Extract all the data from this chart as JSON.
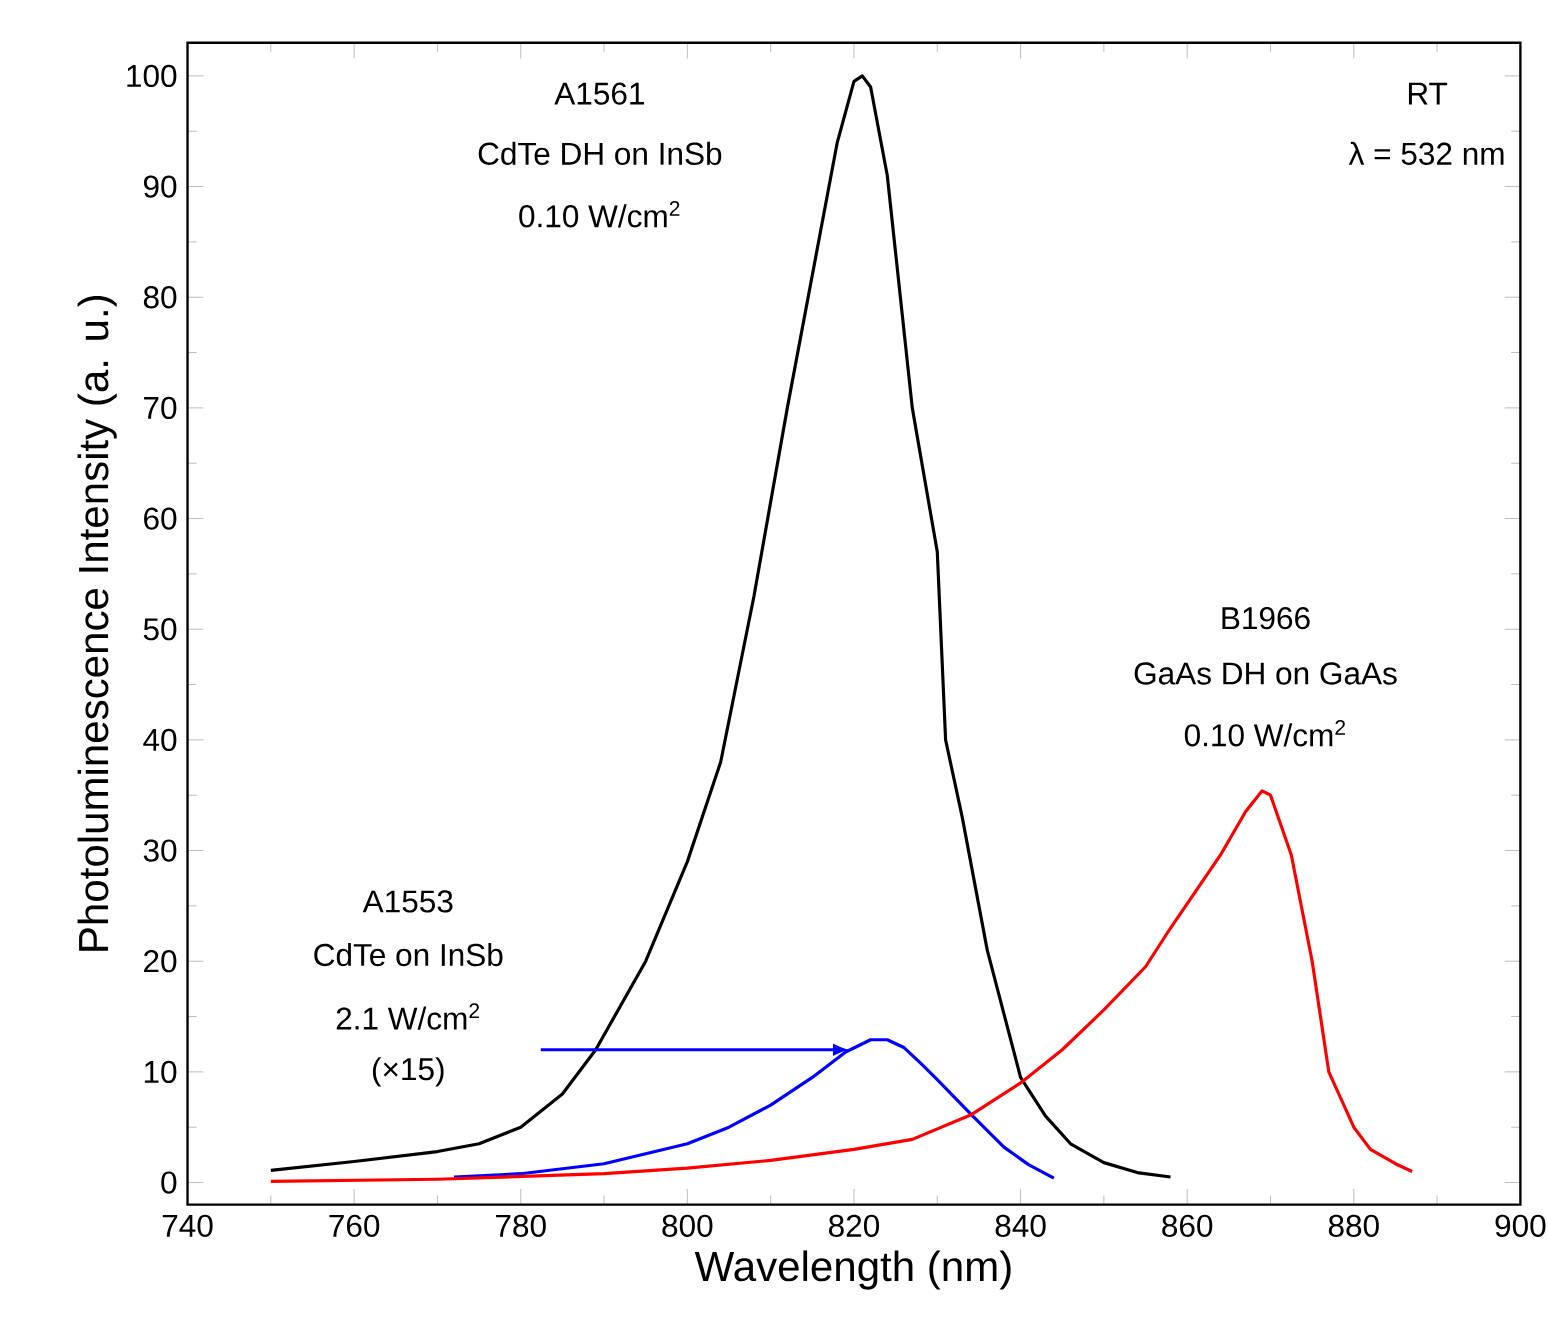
{
  "chart_data": {
    "type": "line",
    "xlabel": "Wavelength (nm)",
    "ylabel": "Photoluminescence Intensity (a. u.)",
    "xlim": [
      740,
      900
    ],
    "xticks": [
      740,
      760,
      780,
      800,
      820,
      840,
      860,
      880,
      900
    ],
    "ylim": [
      -2,
      103
    ],
    "yticks": [
      0,
      10,
      20,
      30,
      40,
      50,
      60,
      70,
      80,
      90,
      100
    ],
    "annotations": [
      "A1561",
      "CdTe DH on InSb",
      "0.10 W/cm$^{2}$",
      "RT",
      "λ = 532 nm",
      "B1966",
      "GaAs DH on GaAs",
      "0.10 W/cm$^{2}$",
      "A1553",
      "CdTe on InSb",
      "2.1 W/cm$^{2}$",
      "(×15)"
    ],
    "series": [
      {
        "color": "#000000",
        "x": [
          750,
          760,
          770,
          775,
          780,
          785,
          789,
          795,
          800,
          804,
          808,
          812,
          816,
          818,
          820,
          821,
          822,
          824,
          825,
          827,
          830,
          831,
          833,
          836,
          840,
          843,
          846,
          850,
          854,
          858
        ],
        "values": [
          1.1,
          1.9,
          2.8,
          3.5,
          5,
          8,
          12,
          20,
          29,
          38,
          53,
          70,
          86,
          94,
          99.5,
          100,
          99,
          91,
          84,
          70,
          57,
          40,
          33,
          21,
          9.5,
          6,
          3.5,
          1.8,
          0.9,
          0.5
        ]
      },
      {
        "color": "#0000ff",
        "x": [
          772,
          780,
          790,
          800,
          805,
          810,
          815,
          819,
          822,
          824,
          826,
          828,
          830,
          834,
          838,
          841,
          844
        ],
        "values": [
          0.5,
          0.8,
          1.7,
          3.5,
          5,
          7,
          9.5,
          11.8,
          12.9,
          12.9,
          12.2,
          10.8,
          9.3,
          6.2,
          3.2,
          1.6,
          0.4
        ]
      },
      {
        "color": "#ff0000",
        "x": [
          750,
          770,
          790,
          800,
          810,
          820,
          827,
          834,
          840,
          845,
          850,
          855,
          858,
          864,
          867,
          869,
          870,
          872.5,
          875,
          877,
          880,
          882,
          885,
          887
        ],
        "values": [
          0.1,
          0.3,
          0.8,
          1.3,
          2,
          3,
          3.9,
          6.1,
          9,
          12,
          15.6,
          19.5,
          23,
          29.6,
          33.5,
          35.4,
          35,
          29.6,
          20,
          10,
          5,
          3,
          1.7,
          1
        ]
      }
    ]
  }
}
